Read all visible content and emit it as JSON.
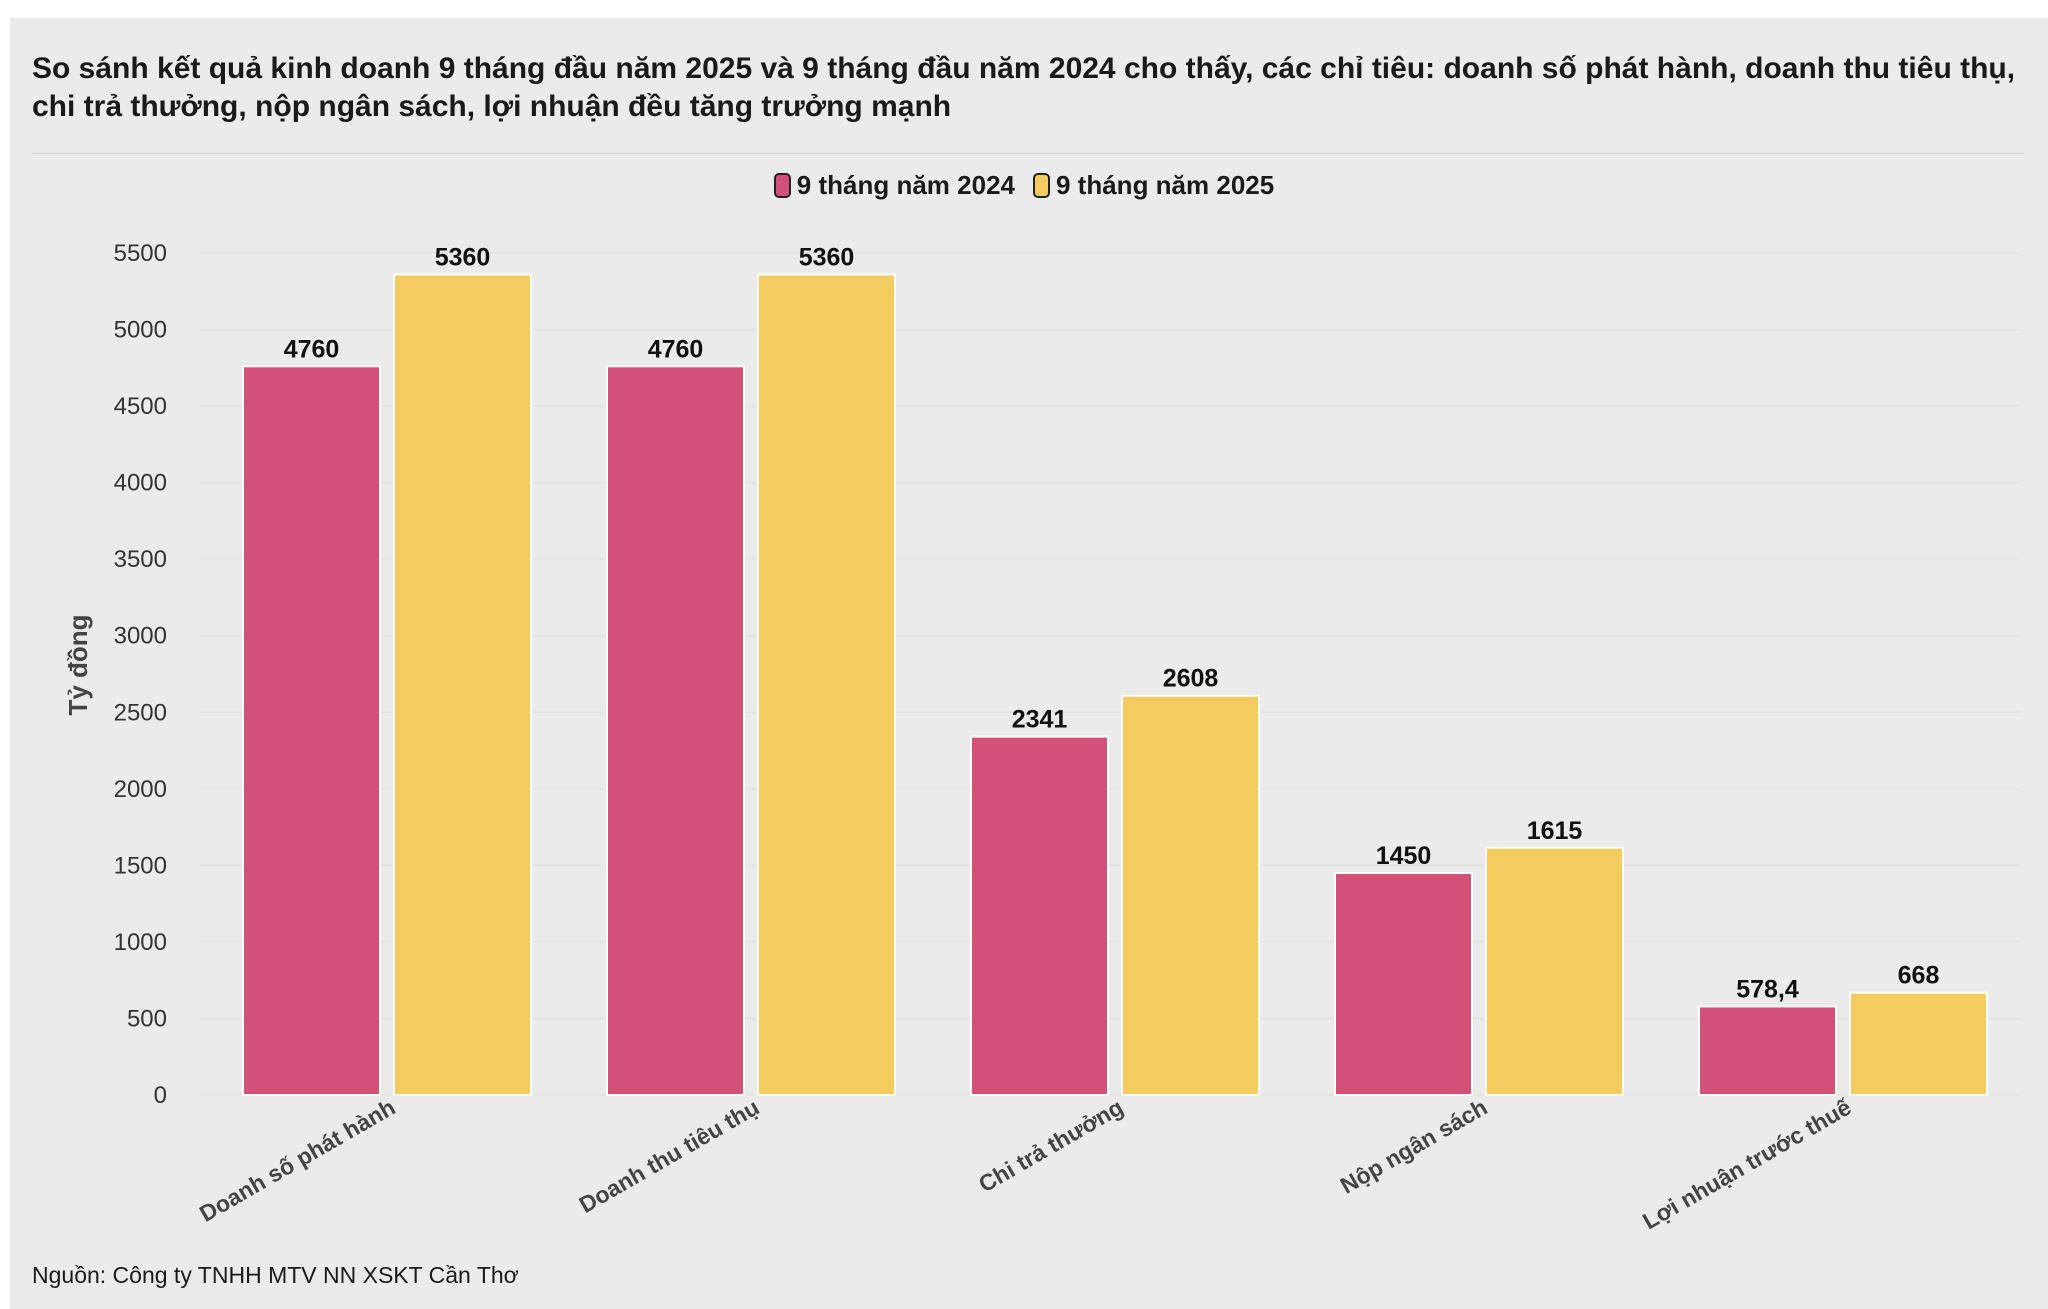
{
  "chart_data": {
    "type": "bar",
    "title": "So sánh kết quả kinh doanh 9 tháng đầu năm 2025 và 9 tháng đầu năm 2024 cho thấy, các chỉ tiêu: doanh số phát hành, doanh thu tiêu thụ, chi trả thưởng, nộp ngân sách, lợi nhuận đều tăng trưởng mạnh",
    "ylabel": "Tỷ đồng",
    "xlabel": "",
    "ylim": [
      0,
      5500
    ],
    "yticks": [
      0,
      500,
      1000,
      1500,
      2000,
      2500,
      3000,
      3500,
      4000,
      4500,
      5000,
      5500
    ],
    "grid": true,
    "legend_position": "top-center",
    "categories": [
      "Doanh số phát hành",
      "Doanh thu tiêu thụ",
      "Chi trả thưởng",
      "Nộp ngân sách",
      "Lợi nhuận trước thuế"
    ],
    "series": [
      {
        "name": "9 tháng năm 2024",
        "color": "#d35079",
        "values": [
          4760,
          4760,
          2341,
          1450,
          578.4
        ],
        "labels": [
          "4760",
          "4760",
          "2341",
          "1450",
          "578,4"
        ]
      },
      {
        "name": "9 tháng năm 2025",
        "color": "#f3cb5e",
        "values": [
          5360,
          5360,
          2608,
          1615,
          668
        ],
        "labels": [
          "5360",
          "5360",
          "2608",
          "1615",
          "668"
        ]
      }
    ]
  },
  "source": "Nguồn: Công ty TNHH MTV NN XSKT Cần Thơ"
}
